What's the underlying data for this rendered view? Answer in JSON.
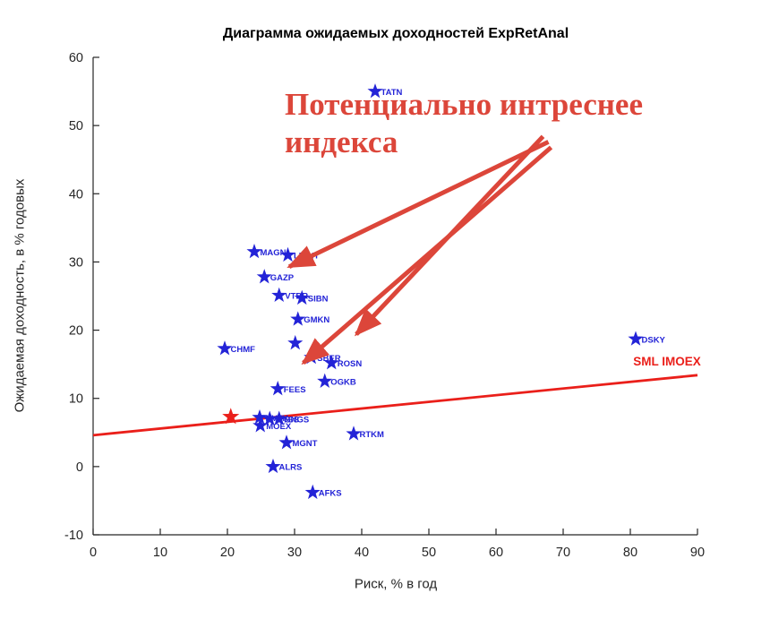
{
  "title": "Диаграмма ожидаемых доходностей ExpRetAnal",
  "annotation": {
    "line1": "Потенциально интреснее",
    "line2": "индекса",
    "color": "#dc463a"
  },
  "chart_data": {
    "type": "scatter",
    "title": "Диаграмма ожидаемых доходностей ExpRetAnal",
    "xlabel": "Риск, % в год",
    "ylabel": "Ожидаемая доходность, в % годовых",
    "xlim": [
      0,
      90
    ],
    "ylim": [
      -10,
      60
    ],
    "xticks": [
      0,
      10,
      20,
      30,
      40,
      50,
      60,
      70,
      80,
      90
    ],
    "yticks": [
      -10,
      0,
      10,
      20,
      30,
      40,
      50,
      60
    ],
    "grid": false,
    "marker": "pentagram",
    "point_color": "#2323d7",
    "axis_color": "#262626",
    "points": [
      {
        "label": "TATN",
        "x": 42,
        "y": 55
      },
      {
        "label": "MAGN",
        "x": 24,
        "y": 31.5
      },
      {
        "label": "LKOH",
        "x": 29,
        "y": 31
      },
      {
        "label": "GAZP",
        "x": 25.5,
        "y": 27.8
      },
      {
        "label": "VTBR",
        "x": 27.7,
        "y": 25.1
      },
      {
        "label": "SIBN",
        "x": 31.1,
        "y": 24.7
      },
      {
        "label": "GMKN",
        "x": 30.5,
        "y": 21.6
      },
      {
        "label": "CHMF",
        "x": 19.6,
        "y": 17.3
      },
      {
        "label": "",
        "x": 30.1,
        "y": 18.1
      },
      {
        "label": "SBER",
        "x": 32.5,
        "y": 16
      },
      {
        "label": "ROSN",
        "x": 35.5,
        "y": 15.2
      },
      {
        "label": "OGKB",
        "x": 34.5,
        "y": 12.5
      },
      {
        "label": "FEES",
        "x": 27.5,
        "y": 11.4
      },
      {
        "label": "NVTK",
        "x": 24.8,
        "y": 7.2
      },
      {
        "label": "MTSS",
        "x": 26.3,
        "y": 7.0
      },
      {
        "label": "SNGS",
        "x": 27.7,
        "y": 7.0
      },
      {
        "label": "MOEX",
        "x": 24.9,
        "y": 6.0
      },
      {
        "label": "RTKM",
        "x": 38.8,
        "y": 4.8
      },
      {
        "label": "MGNT",
        "x": 28.8,
        "y": 3.5
      },
      {
        "label": "ALRS",
        "x": 26.8,
        "y": 0.0
      },
      {
        "label": "AFKS",
        "x": 32.7,
        "y": -3.8
      },
      {
        "label": "DSKY",
        "x": 80.8,
        "y": 18.7
      }
    ],
    "index_point": {
      "label": "",
      "x": 20.5,
      "y": 7.3,
      "color": "#ea1f1a"
    },
    "sml_line": {
      "label": "SML IMOEX",
      "x1": 0,
      "y1": 4.6,
      "x2": 90,
      "y2": 13.4,
      "color": "#ea1f1a",
      "label_x": 90.5,
      "label_y": 14.8
    },
    "arrows": [
      {
        "x1": 67.8,
        "y1": 47.6,
        "x2": 29.2,
        "y2": 29.3
      },
      {
        "x1": 68.2,
        "y1": 46.8,
        "x2": 31.3,
        "y2": 15.2
      },
      {
        "x1": 67.0,
        "y1": 48.4,
        "x2": 39.2,
        "y2": 19.4
      }
    ],
    "annotation_color": "#dc463a"
  }
}
